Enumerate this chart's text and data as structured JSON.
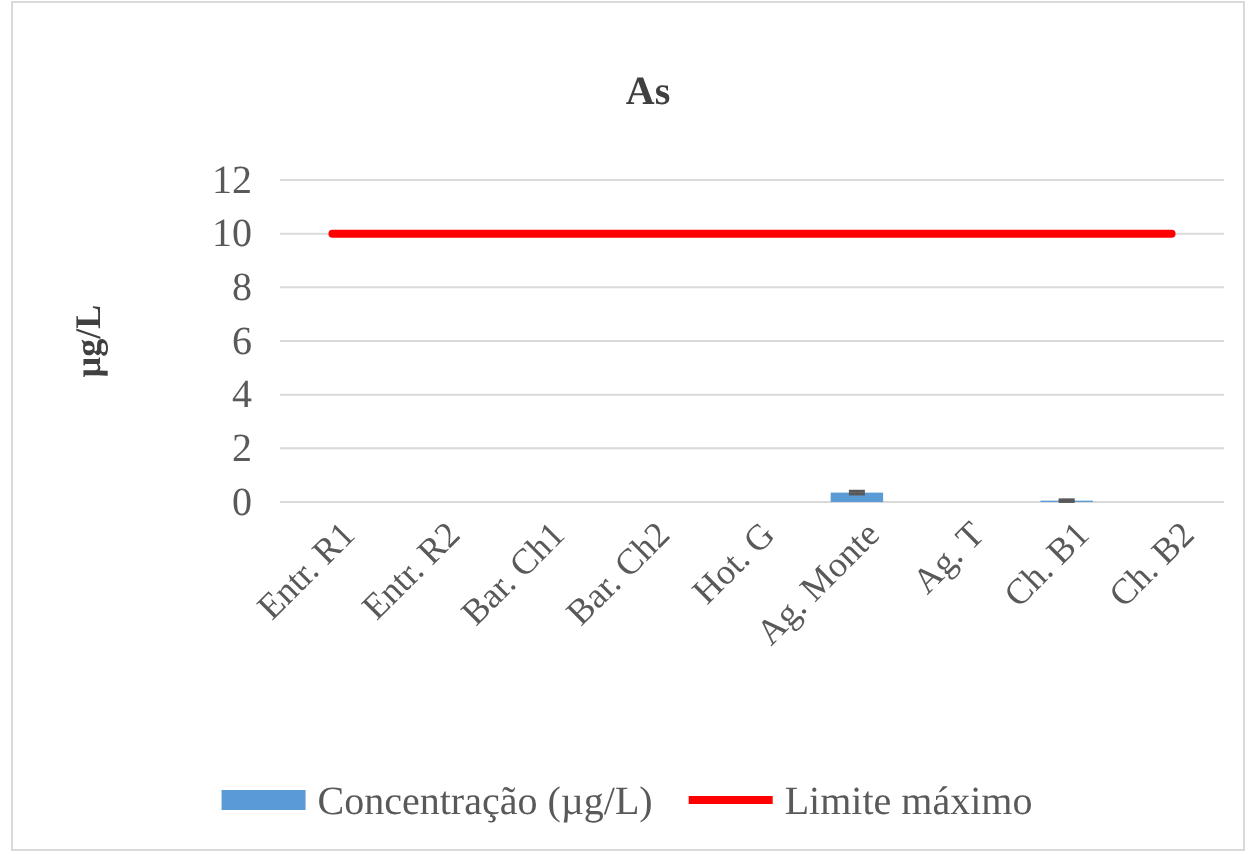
{
  "chart_data": {
    "type": "bar",
    "title": "As",
    "ylabel": "µg/L",
    "categories": [
      "Entr. R1",
      "Entr. R2",
      "Bar. Ch1",
      "Bar. Ch2",
      "Hot. G",
      "Ag. Monte",
      "Ag. T",
      "Ch. B1",
      "Ch. B2"
    ],
    "series": [
      {
        "name": "Concentração (µg/L)",
        "color": "#5b9bd5",
        "values": [
          0,
          0,
          0,
          0,
          0,
          0.35,
          0,
          0.05,
          0
        ],
        "errors": [
          null,
          null,
          null,
          null,
          null,
          0.05,
          null,
          0.03,
          null
        ]
      },
      {
        "name": "Limite máximo",
        "type": "line",
        "color": "#ff0000",
        "values": [
          10,
          10,
          10,
          10,
          10,
          10,
          10,
          10,
          10
        ]
      }
    ],
    "ylim": [
      0,
      12
    ],
    "yticks": [
      0,
      2,
      4,
      6,
      8,
      10,
      12
    ],
    "grid": "y",
    "legend": "bottom"
  }
}
